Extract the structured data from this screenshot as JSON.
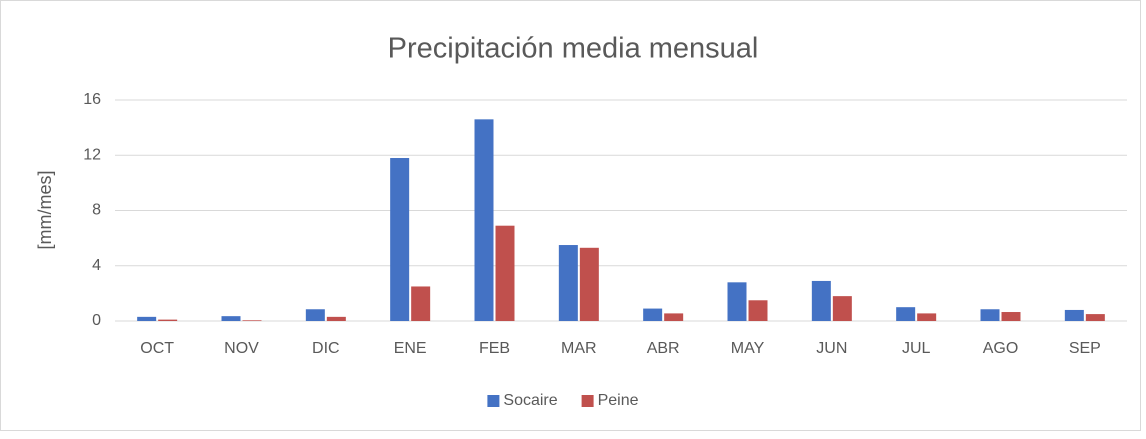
{
  "chart_data": {
    "type": "bar",
    "title": "Precipitación media mensual",
    "y_label": "[mm/mes]",
    "categories": [
      "OCT",
      "NOV",
      "DIC",
      "ENE",
      "FEB",
      "MAR",
      "ABR",
      "MAY",
      "JUN",
      "JUL",
      "AGO",
      "SEP"
    ],
    "series": [
      {
        "name": "Socaire",
        "color": "#4472c4",
        "values": [
          0.3,
          0.35,
          0.85,
          11.8,
          14.6,
          5.5,
          0.9,
          2.8,
          2.9,
          1.0,
          0.85,
          0.8
        ]
      },
      {
        "name": "Peine",
        "color": "#c0504d",
        "values": [
          0.1,
          0.05,
          0.3,
          2.5,
          6.9,
          5.3,
          0.55,
          1.5,
          1.8,
          0.55,
          0.65,
          0.5
        ]
      }
    ],
    "ylim": [
      0,
      16
    ],
    "yticks": [
      0,
      4,
      8,
      12,
      16
    ],
    "grid": true,
    "legend": "bottom"
  }
}
